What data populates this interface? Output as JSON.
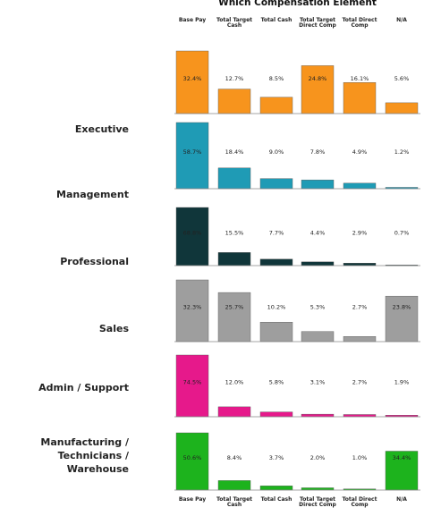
{
  "chart_data": {
    "type": "bar",
    "title": "Which Compensation Element",
    "categories": [
      "Base Pay",
      "Total Target Cash",
      "Total Cash",
      "Total Target Direct Comp",
      "Total Direct Comp",
      "N/A"
    ],
    "series": [
      {
        "name": "Executive",
        "color": "#f7941d",
        "ylim": [
          0,
          32.4
        ],
        "values": [
          32.4,
          12.7,
          8.5,
          24.8,
          16.1,
          5.6
        ],
        "value_labels": [
          "32.4%",
          "12.7%",
          "8.5%",
          "24.8%",
          "16.1%",
          "5.6%"
        ]
      },
      {
        "name": "Management",
        "color": "#1f9bb5",
        "ylim": [
          0,
          58.7
        ],
        "values": [
          58.7,
          18.4,
          9.0,
          7.8,
          4.9,
          1.2
        ],
        "value_labels": [
          "58.7%",
          "18.4%",
          "9.0%",
          "7.8%",
          "4.9%",
          "1.2%"
        ]
      },
      {
        "name": "Professional",
        "color": "#10363a",
        "ylim": [
          0,
          68.8
        ],
        "values": [
          68.8,
          15.5,
          7.7,
          4.4,
          2.9,
          0.7
        ],
        "value_labels": [
          "68.8%",
          "15.5%",
          "7.7%",
          "4.4%",
          "2.9%",
          "0.7%"
        ]
      },
      {
        "name": "Sales",
        "color": "#9e9e9e",
        "ylim": [
          0,
          32.3
        ],
        "values": [
          32.3,
          25.7,
          10.2,
          5.3,
          2.7,
          23.8
        ],
        "value_labels": [
          "32.3%",
          "25.7%",
          "10.2%",
          "5.3%",
          "2.7%",
          "23.8%"
        ]
      },
      {
        "name": "Admin / Support",
        "color": "#e6198b",
        "ylim": [
          0,
          74.5
        ],
        "values": [
          74.5,
          12.0,
          5.8,
          3.1,
          2.7,
          1.9
        ],
        "value_labels": [
          "74.5%",
          "12.0%",
          "5.8%",
          "3.1%",
          "2.7%",
          "1.9%"
        ]
      },
      {
        "name": "Manufacturing / Technicians / Warehouse",
        "color": "#1db31d",
        "ylim": [
          0,
          50.6
        ],
        "values": [
          50.6,
          8.4,
          3.7,
          2.0,
          1.0,
          34.4
        ],
        "value_labels": [
          "50.6%",
          "8.4%",
          "3.7%",
          "2.0%",
          "1.0%",
          "34.4%"
        ]
      }
    ]
  }
}
